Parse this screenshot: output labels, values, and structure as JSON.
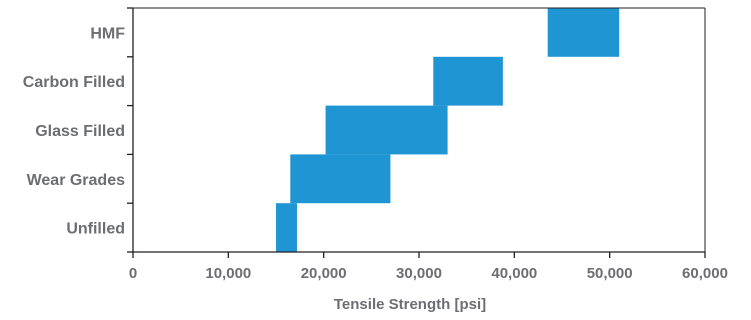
{
  "chart_data": {
    "type": "bar",
    "orientation": "horizontal",
    "style": "floating-range",
    "categories": [
      "HMF",
      "Carbon Filled",
      "Glass Filled",
      "Wear Grades",
      "Unfilled"
    ],
    "ranges": [
      {
        "category": "HMF",
        "min": 43500,
        "max": 51000
      },
      {
        "category": "Carbon Filled",
        "min": 31500,
        "max": 38800
      },
      {
        "category": "Glass Filled",
        "min": 20200,
        "max": 33000
      },
      {
        "category": "Wear Grades",
        "min": 16500,
        "max": 27000
      },
      {
        "category": "Unfilled",
        "min": 15000,
        "max": 17200
      }
    ],
    "xlabel": "Tensile Strength [psi]",
    "ylabel": "",
    "xlim": [
      0,
      60000
    ],
    "xticks": [
      "0",
      "10,000",
      "20,000",
      "30,000",
      "40,000",
      "50,000",
      "60,000"
    ],
    "grid": false,
    "bar_color": "#1f95d3",
    "axis_color": "#231f20",
    "text_color": "#6d6e71"
  }
}
